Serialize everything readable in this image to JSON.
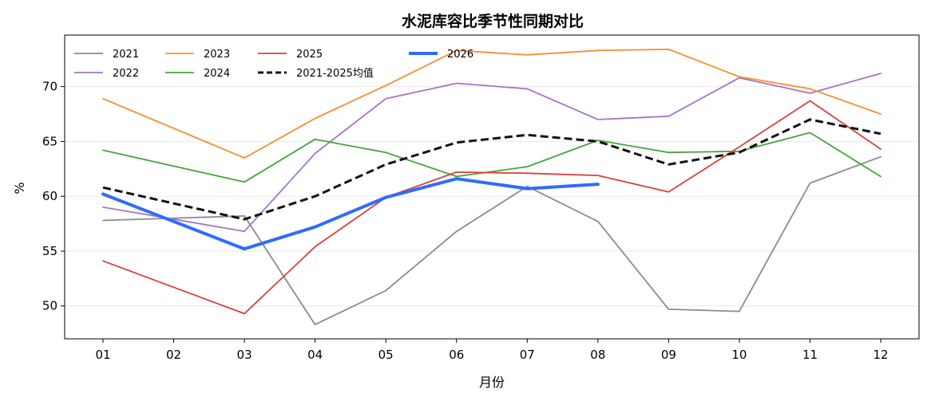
{
  "chart_data": {
    "type": "line",
    "title": "水泥库容比季节性同期对比",
    "xlabel": "月份",
    "ylabel": "%",
    "categories": [
      "01",
      "02",
      "03",
      "04",
      "05",
      "06",
      "07",
      "08",
      "09",
      "10",
      "11",
      "12"
    ],
    "yticks": [
      50,
      55,
      60,
      65,
      70
    ],
    "ylim": [
      47,
      74.7
    ],
    "grid": "horizontal",
    "legend_position": "top-left",
    "series": [
      {
        "name": "2021",
        "color": "#8c8c8c",
        "style": "solid",
        "width": "thin",
        "values": [
          57.8,
          null,
          58.2,
          48.3,
          51.4,
          56.8,
          60.9,
          57.7,
          49.7,
          49.5,
          61.2,
          63.6
        ]
      },
      {
        "name": "2022",
        "color": "#a475c6",
        "style": "solid",
        "width": "thin",
        "values": [
          59.0,
          null,
          56.8,
          63.9,
          68.9,
          70.3,
          69.8,
          67.0,
          67.3,
          70.8,
          69.4,
          71.2
        ]
      },
      {
        "name": "2023",
        "color": "#f5902c",
        "style": "solid",
        "width": "thin",
        "values": [
          68.9,
          null,
          63.5,
          67.1,
          70.1,
          73.3,
          72.9,
          73.3,
          73.4,
          70.9,
          69.8,
          67.5
        ]
      },
      {
        "name": "2024",
        "color": "#46a53e",
        "style": "solid",
        "width": "thin",
        "values": [
          64.2,
          null,
          61.3,
          65.2,
          64.0,
          61.8,
          62.7,
          65.1,
          64.0,
          64.1,
          65.8,
          61.8
        ]
      },
      {
        "name": "2025",
        "color": "#d9403c",
        "style": "solid",
        "width": "thin",
        "values": [
          54.1,
          null,
          49.3,
          55.4,
          59.9,
          62.2,
          62.1,
          61.9,
          60.4,
          64.5,
          68.7,
          64.3
        ]
      },
      {
        "name": "2021-2025均值",
        "color": "#111111",
        "style": "dashed",
        "width": "thick",
        "values": [
          60.8,
          null,
          57.9,
          60.0,
          62.9,
          64.9,
          65.6,
          65.0,
          62.9,
          64.0,
          67.0,
          65.7
        ]
      },
      {
        "name": "2026",
        "color": "#2f6bff",
        "style": "solid",
        "width": "bold",
        "values": [
          60.2,
          null,
          55.2,
          57.2,
          59.9,
          61.6,
          60.7,
          61.1,
          null,
          null,
          null,
          null
        ]
      }
    ],
    "legend_order": [
      "2021",
      "2022",
      "2023",
      "2024",
      "2025",
      "2021-2025均值",
      "2026"
    ]
  }
}
